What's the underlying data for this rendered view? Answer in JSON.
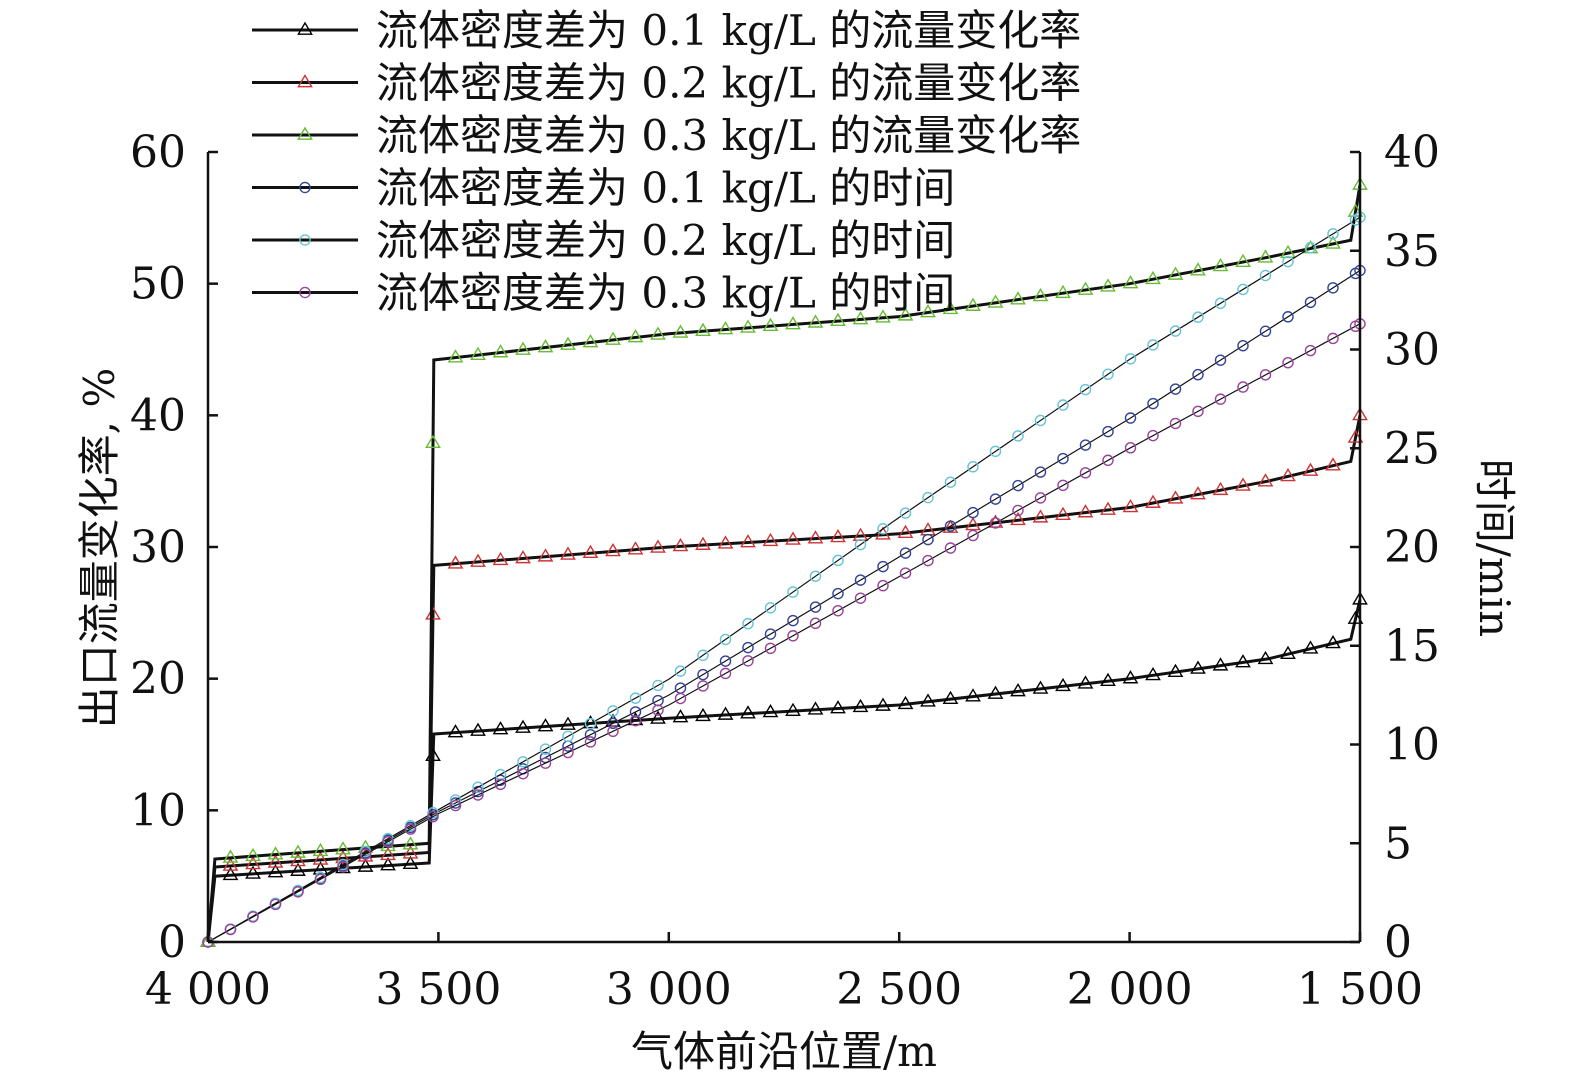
{
  "chart_data": {
    "type": "line",
    "xlabel": "气体前沿位置/m",
    "ylabel_left": "出口流量变化率, %",
    "ylabel_right": "时间/min",
    "x_range": [
      4000,
      1500
    ],
    "x_reversed": true,
    "ylim_left": [
      0,
      60
    ],
    "ylim_right": [
      0,
      40
    ],
    "x_ticks": [
      {
        "value": 4000,
        "label": "4 000"
      },
      {
        "value": 3500,
        "label": "3 500"
      },
      {
        "value": 3000,
        "label": "3 000"
      },
      {
        "value": 2500,
        "label": "2 500"
      },
      {
        "value": 2000,
        "label": "2 000"
      },
      {
        "value": 1500,
        "label": "1 500"
      }
    ],
    "y_left_ticks": [
      {
        "value": 0,
        "label": "0"
      },
      {
        "value": 10,
        "label": "10"
      },
      {
        "value": 20,
        "label": "20"
      },
      {
        "value": 30,
        "label": "30"
      },
      {
        "value": 40,
        "label": "40"
      },
      {
        "value": 50,
        "label": "50"
      },
      {
        "value": 60,
        "label": "60"
      }
    ],
    "y_right_ticks": [
      {
        "value": 0,
        "label": "0"
      },
      {
        "value": 5,
        "label": "5"
      },
      {
        "value": 10,
        "label": "10"
      },
      {
        "value": 15,
        "label": "15"
      },
      {
        "value": 20,
        "label": "20"
      },
      {
        "value": 25,
        "label": "25"
      },
      {
        "value": 30,
        "label": "30"
      },
      {
        "value": 35,
        "label": "35"
      },
      {
        "value": 40,
        "label": "40"
      }
    ],
    "legend_position": "top-left",
    "series": [
      {
        "name": "流体密度差为 0.1 kg/L 的流量变化率",
        "axis": "left",
        "marker": "triangle",
        "color": "#000000",
        "points": [
          [
            4000,
            0
          ],
          [
            3985,
            5
          ],
          [
            3520,
            6
          ],
          [
            3510,
            15.8
          ],
          [
            3000,
            17
          ],
          [
            2500,
            18
          ],
          [
            2000,
            20
          ],
          [
            1700,
            21.5
          ],
          [
            1520,
            23
          ],
          [
            1500,
            26
          ]
        ]
      },
      {
        "name": "流体密度差为 0.2 kg/L 的流量变化率",
        "axis": "left",
        "marker": "triangle",
        "color": "#cc3333",
        "points": [
          [
            4000,
            0
          ],
          [
            3985,
            5.7
          ],
          [
            3520,
            6.8
          ],
          [
            3510,
            28.6
          ],
          [
            3000,
            30
          ],
          [
            2500,
            31
          ],
          [
            2000,
            33
          ],
          [
            1700,
            35
          ],
          [
            1520,
            36.5
          ],
          [
            1500,
            40
          ]
        ]
      },
      {
        "name": "流体密度差为 0.3 kg/L 的流量变化率",
        "axis": "left",
        "marker": "triangle",
        "color": "#66bb33",
        "points": [
          [
            4000,
            0
          ],
          [
            3985,
            6.3
          ],
          [
            3520,
            7.5
          ],
          [
            3510,
            44.2
          ],
          [
            3000,
            46.2
          ],
          [
            2500,
            47.5
          ],
          [
            2000,
            50
          ],
          [
            1700,
            52
          ],
          [
            1520,
            53.3
          ],
          [
            1500,
            57.5
          ]
        ]
      },
      {
        "name": "流体密度差为 0.1 kg/L 的时间",
        "axis": "right",
        "marker": "circle",
        "color": "#334499",
        "points": [
          [
            4000,
            0
          ],
          [
            3500,
            6.6
          ],
          [
            3000,
            12.5
          ],
          [
            2500,
            19.5
          ],
          [
            2000,
            26.5
          ],
          [
            1500,
            34
          ]
        ]
      },
      {
        "name": "流体密度差为 0.2 kg/L 的时间",
        "axis": "right",
        "marker": "circle",
        "color": "#66c4d4",
        "points": [
          [
            4000,
            0
          ],
          [
            3500,
            6.7
          ],
          [
            3000,
            13.3
          ],
          [
            2500,
            21.5
          ],
          [
            2000,
            29.5
          ],
          [
            1500,
            36.7
          ]
        ]
      },
      {
        "name": "流体密度差为 0.3 kg/L 的时间",
        "axis": "right",
        "marker": "circle",
        "color": "#994499",
        "points": [
          [
            4000,
            0
          ],
          [
            3500,
            6.5
          ],
          [
            3000,
            12
          ],
          [
            2500,
            18.5
          ],
          [
            2000,
            25
          ],
          [
            1500,
            31.3
          ]
        ]
      }
    ]
  }
}
